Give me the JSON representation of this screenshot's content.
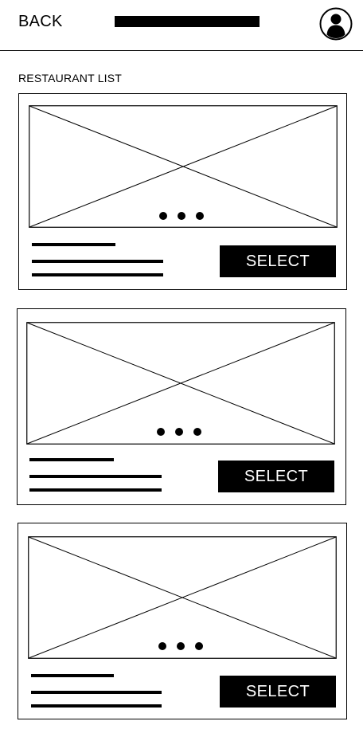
{
  "header": {
    "back_label": "BACK",
    "avatar_icon": "user-avatar-icon"
  },
  "list_title": "RESTAURANT LIST",
  "cards": [
    {
      "image_icon": "image-placeholder-icon",
      "carousel_dots": 3,
      "select_label": "SELECT"
    },
    {
      "image_icon": "image-placeholder-icon",
      "carousel_dots": 3,
      "select_label": "SELECT"
    },
    {
      "image_icon": "image-placeholder-icon",
      "carousel_dots": 3,
      "select_label": "SELECT"
    }
  ]
}
